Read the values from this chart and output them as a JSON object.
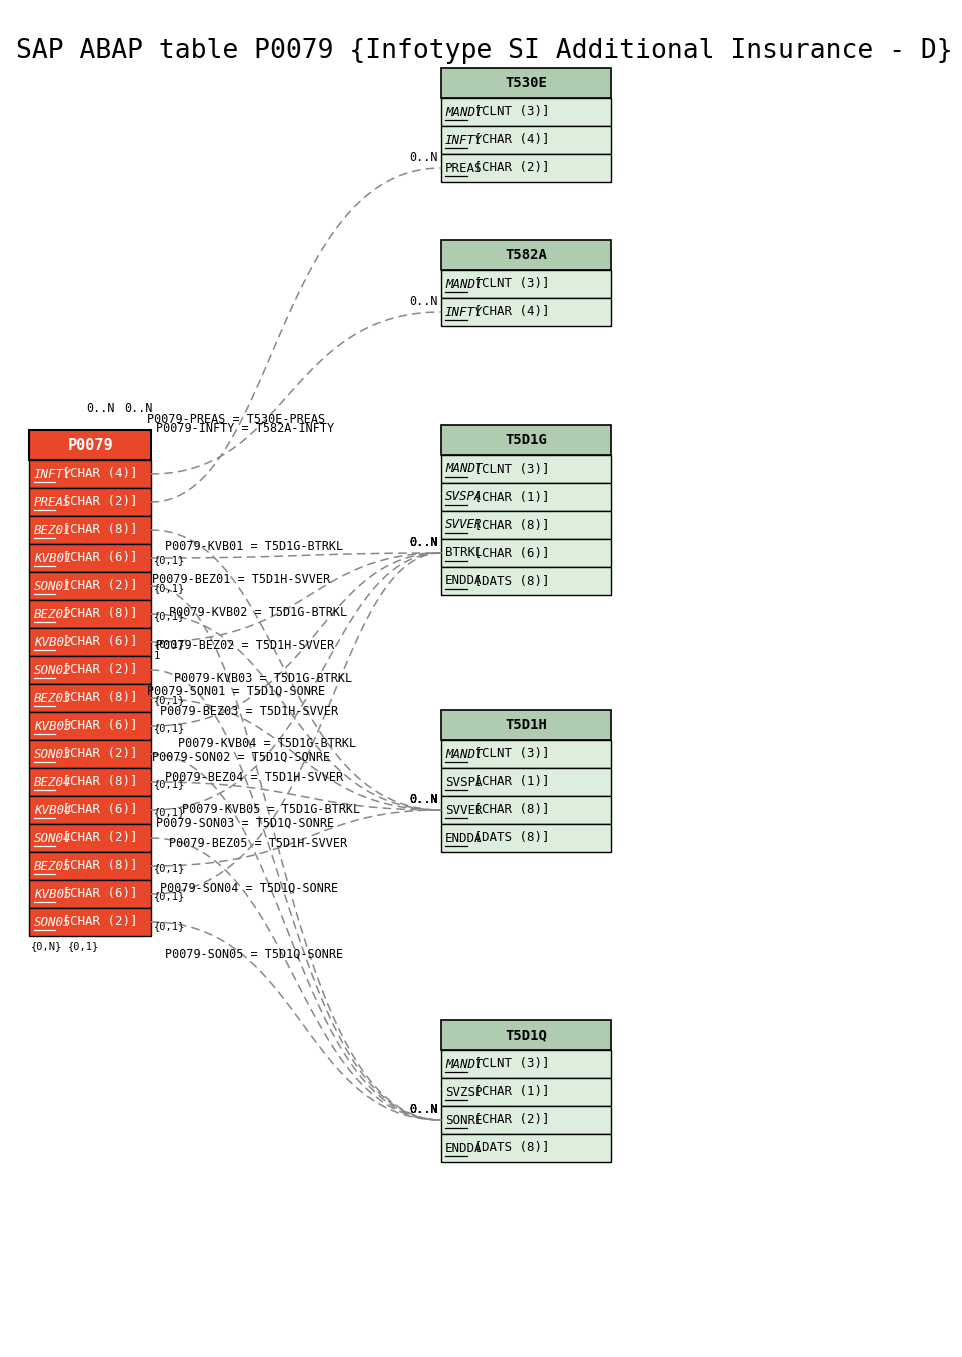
{
  "title": "SAP ABAP table P0079 {Infotype SI Additional Insurance - D}",
  "bg": "#ffffff",
  "p0079_hdr_bg": "#e8472a",
  "p0079_row_bg": "#e8472a",
  "tbl_hdr_bg": "#b0ccb0",
  "tbl_row_bg": "#ddeedd",
  "p0079_fields": [
    "INFTY [CHAR (4)]",
    "PREAS [CHAR (2)]",
    "BEZ01 [CHAR (8)]",
    "KVB01 [CHAR (6)]",
    "SON01 [CHAR (2)]",
    "BEZ02 [CHAR (8)]",
    "KVB02 [CHAR (6)]",
    "SON02 [CHAR (2)]",
    "BEZ03 [CHAR (8)]",
    "KVB03 [CHAR (6)]",
    "SON03 [CHAR (2)]",
    "BEZ04 [CHAR (8)]",
    "KVB04 [CHAR (6)]",
    "SON04 [CHAR (2)]",
    "BEZ05 [CHAR (8)]",
    "KVB05 [CHAR (6)]",
    "SON05 [CHAR (2)]"
  ],
  "t530e": {
    "name": "T530E",
    "fields": [
      "MANDT [CLNT (3)]",
      "INFTY [CHAR (4)]",
      "PREAS [CHAR (2)]"
    ],
    "italic": [
      "MANDT",
      "INFTY"
    ],
    "underline": [
      "MANDT",
      "INFTY",
      "PREAS"
    ]
  },
  "t582a": {
    "name": "T582A",
    "fields": [
      "MANDT [CLNT (3)]",
      "INFTY [CHAR (4)]"
    ],
    "italic": [
      "MANDT",
      "INFTY"
    ],
    "underline": [
      "MANDT",
      "INFTY"
    ]
  },
  "t5d1g": {
    "name": "T5D1G",
    "fields": [
      "MANDT [CLNT (3)]",
      "SVSPA [CHAR (1)]",
      "SVVER [CHAR (8)]",
      "BTRKL [CHAR (6)]",
      "ENDDA [DATS (8)]"
    ],
    "italic": [
      "MANDT",
      "SVSPA",
      "SVVER"
    ],
    "underline": [
      "MANDT",
      "SVSPA",
      "SVVER",
      "BTRKL",
      "ENDDA"
    ]
  },
  "t5d1h": {
    "name": "T5D1H",
    "fields": [
      "MANDT [CLNT (3)]",
      "SVSPA [CHAR (1)]",
      "SVVER [CHAR (8)]",
      "ENDDA [DATS (8)]"
    ],
    "italic": [
      "MANDT"
    ],
    "underline": [
      "MANDT",
      "SVSPA",
      "SVVER",
      "ENDDA"
    ]
  },
  "t5d1q": {
    "name": "T5D1Q",
    "fields": [
      "MANDT [CLNT (3)]",
      "SVZSP [CHAR (1)]",
      "SONRE [CHAR (2)]",
      "ENDDA [DATS (8)]"
    ],
    "italic": [
      "MANDT"
    ],
    "underline": [
      "MANDT",
      "SVZSP",
      "SONRE",
      "ENDDA"
    ]
  }
}
